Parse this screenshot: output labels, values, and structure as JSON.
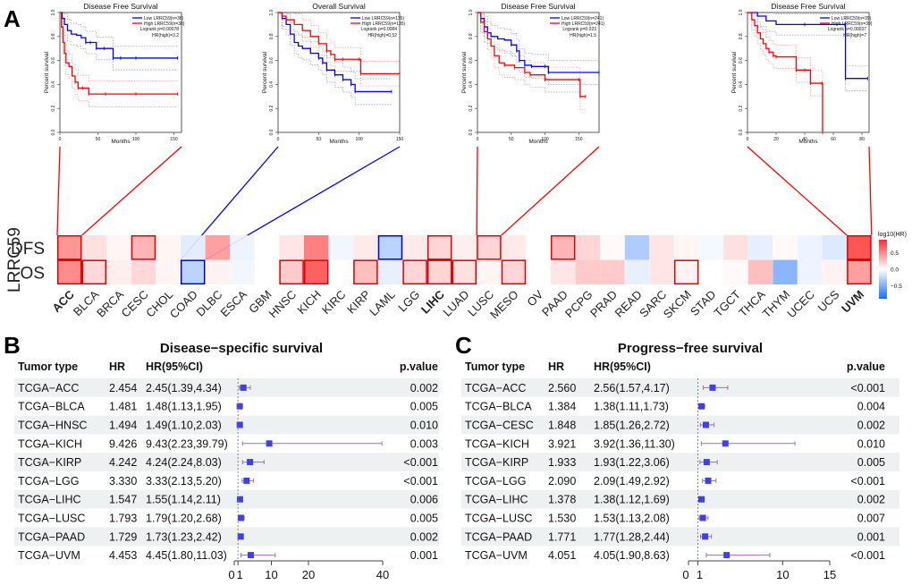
{
  "panel_labels": {
    "a": "A",
    "b": "B",
    "c": "C"
  },
  "chart_data": [
    {
      "id": "km1",
      "type": "line",
      "title": "Disease Free Survival",
      "xlabel": "Months",
      "ylabel": "Percent survival",
      "xlim": [
        0,
        160
      ],
      "ylim": [
        0,
        1
      ],
      "xticks": [
        0,
        50,
        100,
        150
      ],
      "yticks": [
        0.0,
        0.2,
        0.4,
        0.6,
        0.8,
        1.0
      ],
      "legend": [
        "Low LRRC59(n=38)",
        "High LRRC59(n=38)"
      ],
      "annotations": [
        "Logrank p=0.00078",
        "HR(high)=3.2"
      ],
      "series": [
        {
          "name": "Low LRRC59(n=38)",
          "color": "#0000ff",
          "x": [
            0,
            3,
            6,
            10,
            15,
            22,
            28,
            34,
            40,
            48,
            58,
            70,
            80,
            100,
            155
          ],
          "y": [
            1.0,
            0.95,
            0.9,
            0.85,
            0.82,
            0.81,
            0.79,
            0.75,
            0.75,
            0.7,
            0.7,
            0.62,
            0.62,
            0.62,
            0.62
          ]
        },
        {
          "name": "High LRRC59(n=38)",
          "color": "#ff0000",
          "x": [
            0,
            2,
            4,
            6,
            8,
            12,
            16,
            20,
            24,
            30,
            38,
            60,
            100,
            155
          ],
          "y": [
            1.0,
            0.88,
            0.75,
            0.66,
            0.58,
            0.55,
            0.47,
            0.42,
            0.37,
            0.37,
            0.32,
            0.32,
            0.32,
            0.32
          ]
        }
      ]
    },
    {
      "id": "km2",
      "type": "line",
      "title": "Overall Survival",
      "xlabel": "Months",
      "ylabel": "Percent survival",
      "xlim": [
        0,
        150
      ],
      "ylim": [
        0,
        1
      ],
      "xticks": [
        0,
        50,
        100,
        150
      ],
      "yticks": [
        0.0,
        0.2,
        0.4,
        0.6,
        0.8,
        1.0
      ],
      "legend": [
        "Low LRRC59(n=135)",
        "High LRRC59(n=135)"
      ],
      "annotations": [
        "Logrank p=0.0084",
        "HR(high)=0.52"
      ],
      "series": [
        {
          "name": "Low LRRC59(n=135)",
          "color": "#0000ff",
          "x": [
            0,
            5,
            10,
            15,
            20,
            25,
            30,
            40,
            50,
            55,
            60,
            70,
            80,
            90,
            95,
            140
          ],
          "y": [
            1.0,
            0.95,
            0.9,
            0.82,
            0.75,
            0.72,
            0.7,
            0.66,
            0.62,
            0.58,
            0.52,
            0.48,
            0.44,
            0.4,
            0.34,
            0.34
          ]
        },
        {
          "name": "High LRRC59(n=135)",
          "color": "#ff0000",
          "x": [
            0,
            5,
            10,
            20,
            30,
            40,
            50,
            60,
            65,
            70,
            80,
            100,
            102,
            150
          ],
          "y": [
            1.0,
            0.97,
            0.94,
            0.9,
            0.85,
            0.8,
            0.74,
            0.68,
            0.65,
            0.61,
            0.61,
            0.61,
            0.49,
            0.49
          ]
        }
      ]
    },
    {
      "id": "km3",
      "type": "line",
      "title": "Disease Free Survival",
      "xlabel": "Months",
      "ylabel": "Percent survival",
      "xlim": [
        0,
        180
      ],
      "ylim": [
        0,
        1
      ],
      "xticks": [
        0,
        50,
        100,
        150
      ],
      "yticks": [
        0.0,
        0.2,
        0.4,
        0.6,
        0.8,
        1.0
      ],
      "legend": [
        "Low LRRC59(n=241)",
        "High LRRC59(n=241)"
      ],
      "annotations": [
        "Logrank p=0.023",
        "HR(high)=1.5"
      ],
      "series": [
        {
          "name": "Low LRRC59(n=241)",
          "color": "#0000ff",
          "x": [
            0,
            5,
            10,
            15,
            20,
            30,
            40,
            50,
            58,
            62,
            70,
            80,
            100,
            105,
            180
          ],
          "y": [
            1.0,
            0.95,
            0.88,
            0.83,
            0.8,
            0.78,
            0.77,
            0.73,
            0.68,
            0.6,
            0.56,
            0.55,
            0.55,
            0.5,
            0.5
          ]
        },
        {
          "name": "High LRRC59(n=241)",
          "color": "#ff0000",
          "x": [
            0,
            5,
            10,
            15,
            20,
            25,
            32,
            40,
            55,
            70,
            78,
            100,
            150,
            152,
            160
          ],
          "y": [
            1.0,
            0.92,
            0.84,
            0.78,
            0.72,
            0.64,
            0.58,
            0.56,
            0.54,
            0.5,
            0.48,
            0.44,
            0.44,
            0.3,
            0.3
          ]
        }
      ]
    },
    {
      "id": "km4",
      "type": "line",
      "title": "Disease Free Survival",
      "xlabel": "Months",
      "ylabel": "Percent survival",
      "xlim": [
        0,
        85
      ],
      "ylim": [
        0,
        1
      ],
      "xticks": [
        0,
        20,
        40,
        60,
        80
      ],
      "yticks": [
        0.0,
        0.2,
        0.4,
        0.6,
        0.8,
        1.0
      ],
      "legend": [
        "Low LRRC59(n=39)",
        "High LRRC59(n=39)"
      ],
      "annotations": [
        "Logrank p=0.00037",
        "HR(high)=7"
      ],
      "series": [
        {
          "name": "Low LRRC59(n=39)",
          "color": "#0000ff",
          "x": [
            0,
            7,
            13,
            20,
            40,
            68,
            68.5,
            84
          ],
          "y": [
            1.0,
            0.97,
            0.93,
            0.9,
            0.9,
            0.9,
            0.45,
            0.45
          ]
        },
        {
          "name": "High LRRC59(n=39)",
          "color": "#ff0000",
          "x": [
            0,
            3,
            5,
            7,
            9,
            11,
            13,
            15,
            18,
            20,
            34,
            40,
            44,
            52,
            52.5
          ],
          "y": [
            1.0,
            0.94,
            0.89,
            0.83,
            0.78,
            0.74,
            0.7,
            0.67,
            0.64,
            0.63,
            0.52,
            0.52,
            0.41,
            0.41,
            0.0
          ]
        }
      ]
    },
    {
      "id": "heatmap",
      "type": "heatmap",
      "ylabel": "LRRC59",
      "rows": [
        "DFS",
        "OS"
      ],
      "columns": [
        "ACC",
        "BLCA",
        "BRCA",
        "CESC",
        "CHOL",
        "COAD",
        "DLBC",
        "ESCA",
        "GBM",
        "HNSC",
        "KICH",
        "KIRC",
        "KIRP",
        "LAML",
        "LGG",
        "LIHC",
        "LUAD",
        "LUSC",
        "MESO",
        "OV",
        "PAAD",
        "PCPG",
        "PRAD",
        "READ",
        "SARC",
        "SKCM",
        "STAD",
        "TGCT",
        "THCA",
        "THYM",
        "UCEC",
        "UCS",
        "UVM"
      ],
      "bold_columns": [
        "ACC",
        "LIHC",
        "UVM"
      ],
      "values": {
        "DFS": [
          0.5,
          0.15,
          0.05,
          0.35,
          0.05,
          -0.12,
          0.45,
          -0.08,
          0.0,
          0.12,
          0.6,
          -0.06,
          0.1,
          -0.3,
          0.1,
          0.2,
          0.08,
          0.2,
          0.1,
          0.0,
          0.35,
          0.2,
          0.02,
          -0.35,
          0.12,
          0.05,
          -0.05,
          0.15,
          -0.1,
          0.03,
          -0.08,
          -0.15,
          0.8
        ],
        "OS": [
          0.55,
          0.18,
          0.08,
          0.18,
          0.05,
          -0.3,
          0.06,
          -0.06,
          0.0,
          0.25,
          0.75,
          0.0,
          0.3,
          -0.1,
          0.2,
          0.2,
          0.15,
          0.05,
          0.2,
          0.0,
          0.12,
          0.25,
          0.25,
          -0.1,
          0.12,
          0.06,
          0.0,
          0.03,
          0.3,
          -0.5,
          -0.08,
          0.06,
          0.45
        ]
      },
      "significant_up": {
        "DFS": [
          "ACC",
          "CESC",
          "LIHC",
          "LUSC",
          "PAAD",
          "UVM"
        ],
        "OS": [
          "ACC",
          "BLCA",
          "HNSC",
          "KICH",
          "KIRP",
          "LGG",
          "LIHC",
          "LUAD",
          "MESO",
          "SKCM",
          "UVM"
        ]
      },
      "significant_down": {
        "DFS": [
          "LAML"
        ],
        "OS": [
          "COAD"
        ]
      },
      "legend": {
        "title": "log10(HR)",
        "ticks": [
          0.5,
          0.0,
          -0.5
        ]
      },
      "colors": {
        "high": "#ff3030",
        "mid": "#ffffff",
        "low": "#1e6fff",
        "sig_up": "#e00000",
        "sig_down": "#0000dd"
      },
      "zoom_links": [
        {
          "row": "DFS",
          "column": "ACC",
          "plot": "km1",
          "color": "#ff0000"
        },
        {
          "row": "OS",
          "column": "COAD",
          "plot": "km2",
          "color": "#0000ff"
        },
        {
          "row": "DFS",
          "column": "LUSC",
          "plot": "km3",
          "color": "#ff0000"
        },
        {
          "row": "DFS",
          "column": "UVM",
          "plot": "km4",
          "color": "#ff0000"
        }
      ]
    },
    {
      "id": "forestB",
      "type": "table",
      "title": "Disease−specific survival",
      "headers": [
        "Tumor type",
        "HR",
        "HR(95%CI)",
        "p.value"
      ],
      "rows": [
        {
          "tumor": "TCGA−ACC",
          "hr": "2.454",
          "ci": "2.45(1.39,4.34)",
          "p": "0.002",
          "est": 2.454,
          "lo": 1.39,
          "hi": 4.34
        },
        {
          "tumor": "TCGA−BLCA",
          "hr": "1.481",
          "ci": "1.48(1.13,1.95)",
          "p": "0.005",
          "est": 1.481,
          "lo": 1.13,
          "hi": 1.95
        },
        {
          "tumor": "TCGA−HNSC",
          "hr": "1.494",
          "ci": "1.49(1.10,2.03)",
          "p": "0.010",
          "est": 1.494,
          "lo": 1.1,
          "hi": 2.03
        },
        {
          "tumor": "TCGA−KICH",
          "hr": "9.426",
          "ci": "9.43(2.23,39.79)",
          "p": "0.003",
          "est": 9.426,
          "lo": 2.23,
          "hi": 39.79
        },
        {
          "tumor": "TCGA−KIRP",
          "hr": "4.242",
          "ci": "4.24(2.24,8.03)",
          "p": "<0.001",
          "est": 4.242,
          "lo": 2.24,
          "hi": 8.03
        },
        {
          "tumor": "TCGA−LGG",
          "hr": "3.330",
          "ci": "3.33(2.13,5.20)",
          "p": "<0.001",
          "est": 3.33,
          "lo": 2.13,
          "hi": 5.2
        },
        {
          "tumor": "TCGA−LIHC",
          "hr": "1.547",
          "ci": "1.55(1.14,2.11)",
          "p": "0.006",
          "est": 1.547,
          "lo": 1.14,
          "hi": 2.11
        },
        {
          "tumor": "TCGA−LUSC",
          "hr": "1.793",
          "ci": "1.79(1.20,2.68)",
          "p": "0.005",
          "est": 1.793,
          "lo": 1.2,
          "hi": 2.68
        },
        {
          "tumor": "TCGA−PAAD",
          "hr": "1.729",
          "ci": "1.73(1.23,2.42)",
          "p": "0.002",
          "est": 1.729,
          "lo": 1.23,
          "hi": 2.42
        },
        {
          "tumor": "TCGA−UVM",
          "hr": "4.453",
          "ci": "4.45(1.80,11.03)",
          "p": "0.001",
          "est": 4.453,
          "lo": 1.8,
          "hi": 11.03
        }
      ],
      "xlim": [
        0,
        40
      ],
      "xticks": [
        0,
        1,
        10,
        20,
        40
      ],
      "xtick_labels": [
        "0",
        "1",
        "10",
        "20",
        "40"
      ],
      "reference_line": 1
    },
    {
      "id": "forestC",
      "type": "table",
      "title": "Progress−free survival",
      "headers": [
        "Tumor type",
        "HR",
        "HR(95%CI)",
        "p.value"
      ],
      "rows": [
        {
          "tumor": "TCGA−ACC",
          "hr": "2.560",
          "ci": "2.56(1.57,4.17)",
          "p": "<0.001",
          "est": 2.56,
          "lo": 1.57,
          "hi": 4.17
        },
        {
          "tumor": "TCGA−BLCA",
          "hr": "1.384",
          "ci": "1.38(1.11,1.73)",
          "p": "0.004",
          "est": 1.384,
          "lo": 1.11,
          "hi": 1.73
        },
        {
          "tumor": "TCGA−CESC",
          "hr": "1.848",
          "ci": "1.85(1.26,2.72)",
          "p": "0.002",
          "est": 1.848,
          "lo": 1.26,
          "hi": 2.72
        },
        {
          "tumor": "TCGA−KICH",
          "hr": "3.921",
          "ci": "3.92(1.36,11.30)",
          "p": "0.010",
          "est": 3.921,
          "lo": 1.36,
          "hi": 11.3
        },
        {
          "tumor": "TCGA−KIRP",
          "hr": "1.933",
          "ci": "1.93(1.22,3.06)",
          "p": "0.005",
          "est": 1.933,
          "lo": 1.22,
          "hi": 3.06
        },
        {
          "tumor": "TCGA−LGG",
          "hr": "2.090",
          "ci": "2.09(1.49,2.92)",
          "p": "<0.001",
          "est": 2.09,
          "lo": 1.49,
          "hi": 2.92
        },
        {
          "tumor": "TCGA−LIHC",
          "hr": "1.378",
          "ci": "1.38(1.12,1.69)",
          "p": "0.002",
          "est": 1.378,
          "lo": 1.12,
          "hi": 1.69
        },
        {
          "tumor": "TCGA−LUSC",
          "hr": "1.530",
          "ci": "1.53(1.13,2.08)",
          "p": "0.007",
          "est": 1.53,
          "lo": 1.13,
          "hi": 2.08
        },
        {
          "tumor": "TCGA−PAAD",
          "hr": "1.771",
          "ci": "1.77(1.28,2.44)",
          "p": "0.001",
          "est": 1.771,
          "lo": 1.28,
          "hi": 2.44
        },
        {
          "tumor": "TCGA−UVM",
          "hr": "4.051",
          "ci": "4.05(1.90,8.63)",
          "p": "<0.001",
          "est": 4.051,
          "lo": 1.9,
          "hi": 8.63
        }
      ],
      "xlim": [
        0,
        15
      ],
      "xticks": [
        0,
        1,
        10,
        15
      ],
      "xtick_labels": [
        "0",
        "1",
        "10",
        "15"
      ],
      "reference_line": 1
    }
  ]
}
